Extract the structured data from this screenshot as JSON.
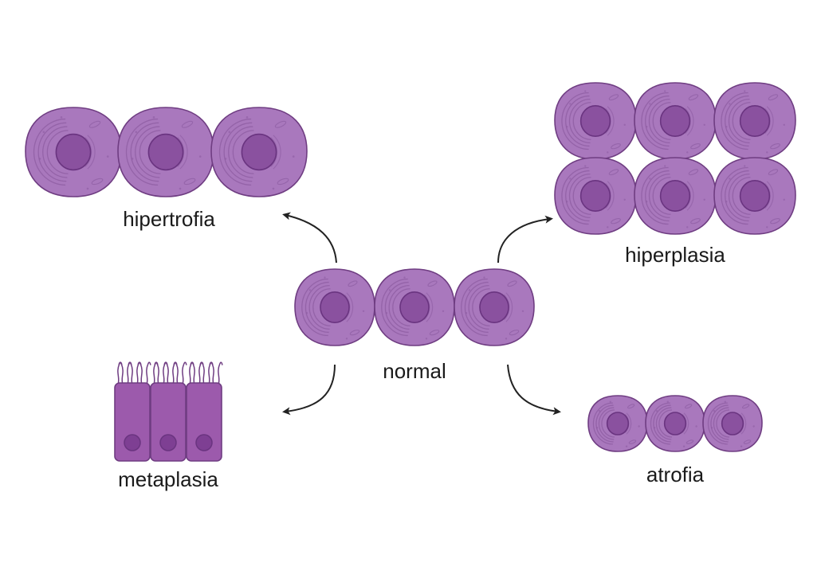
{
  "labels": {
    "hipertrofia": "hipertrofia",
    "hiperplasia": "hiperplasia",
    "normal": "normal",
    "metaplasia": "metaplasia",
    "atrofia": "atrofia"
  },
  "colors": {
    "cell_fill": "#a978bd",
    "cell_stroke": "#6f3d82",
    "organelle": "#8d5ca2",
    "nucleus_fill": "#8a519f",
    "nucleus_stroke": "#6a3480",
    "columnar_fill": "#9c5aac",
    "cilia": "#6f3d82",
    "arrow": "#222222",
    "text": "#1a1a1a"
  }
}
